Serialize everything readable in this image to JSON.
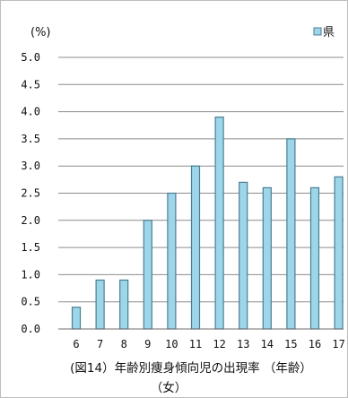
{
  "chart_data": {
    "type": "bar",
    "unit_label": "(%)",
    "categories": [
      "6",
      "7",
      "8",
      "9",
      "10",
      "11",
      "12",
      "13",
      "14",
      "15",
      "16",
      "17"
    ],
    "series": [
      {
        "name": "県",
        "values": [
          0.4,
          0.9,
          0.9,
          2.0,
          2.5,
          3.0,
          3.9,
          2.7,
          2.6,
          3.5,
          2.6,
          2.8
        ],
        "color": "#9dd6e8",
        "edge_color": "#4a7d94"
      }
    ],
    "ylim": [
      0,
      5.0
    ],
    "y_ticks": [
      "0.0",
      "0.5",
      "1.0",
      "1.5",
      "2.0",
      "2.5",
      "3.0",
      "3.5",
      "4.0",
      "4.5",
      "5.0"
    ],
    "grid": true,
    "legend_position": "top-right",
    "caption_line1": "(図14）年齢別痩身傾向児の出現率 （年齢）",
    "caption_line2": "（女）"
  }
}
